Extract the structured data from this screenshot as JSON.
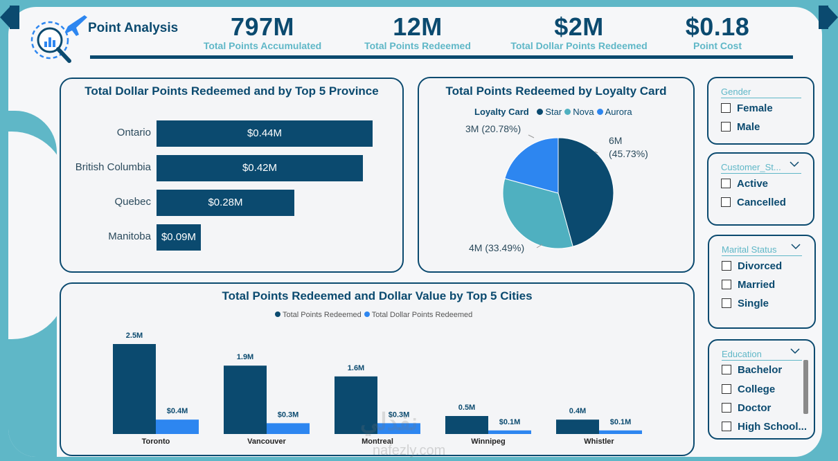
{
  "header": {
    "title": "Point Analysis",
    "kpis": [
      {
        "value": "797M",
        "label": "Total Points Accumulated"
      },
      {
        "value": "12M",
        "label": "Total Points Redeemed"
      },
      {
        "value": "$2M",
        "label": "Total Dollar Points Redeemed"
      },
      {
        "value": "$0.18",
        "label": "Point Cost"
      }
    ]
  },
  "province_chart": {
    "title": "Total Dollar Points Redeemed and by Top 5 Province"
  },
  "loyalty_chart": {
    "title": "Total Points Redeemed by Loyalty Card",
    "legend_title": "Loyalty Card"
  },
  "cities_chart": {
    "title": "Total Points Redeemed and Dollar Value by Top 5 Cities"
  },
  "chart_data": [
    {
      "type": "bar",
      "orientation": "horizontal",
      "title": "Total Dollar Points Redeemed and by Top 5 Province",
      "categories": [
        "Ontario",
        "British Columbia",
        "Quebec",
        "Manitoba"
      ],
      "values": [
        0.44,
        0.42,
        0.28,
        0.09
      ],
      "data_labels": [
        "$0.44M",
        "$0.42M",
        "$0.28M",
        "$0.09M"
      ],
      "color": "#0b4a6f"
    },
    {
      "type": "pie",
      "title": "Total Points Redeemed by Loyalty Card",
      "legend_title": "Loyalty Card",
      "legend_position": "top",
      "slices": [
        {
          "name": "Star",
          "value": 45.73,
          "label": "6M (45.73%)",
          "color": "#0b4a6f"
        },
        {
          "name": "Nova",
          "value": 33.49,
          "label": "4M (33.49%)",
          "color": "#4fb0c0"
        },
        {
          "name": "Aurora",
          "value": 20.78,
          "label": "3M (20.78%)",
          "color": "#2d86f0"
        }
      ]
    },
    {
      "type": "bar",
      "title": "Total Points Redeemed and Dollar Value by Top 5 Cities",
      "legend_position": "top",
      "categories": [
        "Toronto",
        "Vancouver",
        "Montreal",
        "Winnipeg",
        "Whistler"
      ],
      "series": [
        {
          "name": "Total Points Redeemed",
          "color": "#0b4a6f",
          "values": [
            2.5,
            1.9,
            1.6,
            0.5,
            0.4
          ],
          "labels": [
            "2.5M",
            "1.9M",
            "1.6M",
            "0.5M",
            "0.4M"
          ]
        },
        {
          "name": "Total Dollar Points Redeemed",
          "color": "#2d86f0",
          "values": [
            0.4,
            0.3,
            0.3,
            0.1,
            0.1
          ],
          "labels": [
            "$0.4M",
            "$0.3M",
            "$0.3M",
            "$0.1M",
            "$0.1M"
          ]
        }
      ]
    }
  ],
  "slicers": {
    "gender": {
      "label": "Gender",
      "options": [
        "Female",
        "Male"
      ]
    },
    "customer_status": {
      "label": "Customer_St...",
      "options": [
        "Active",
        "Cancelled"
      ]
    },
    "marital_status": {
      "label": "Marital Status",
      "options": [
        "Divorced",
        "Married",
        "Single"
      ]
    },
    "education": {
      "label": "Education",
      "options": [
        "Bachelor",
        "College",
        "Doctor",
        "High School..."
      ]
    }
  },
  "watermark": {
    "text": "نفذلي",
    "url": "nafezly.com"
  }
}
